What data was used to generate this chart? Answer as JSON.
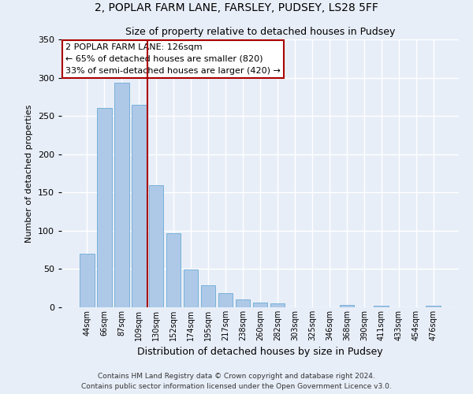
{
  "title": "2, POPLAR FARM LANE, FARSLEY, PUDSEY, LS28 5FF",
  "subtitle": "Size of property relative to detached houses in Pudsey",
  "xlabel": "Distribution of detached houses by size in Pudsey",
  "ylabel": "Number of detached properties",
  "bin_labels": [
    "44sqm",
    "66sqm",
    "87sqm",
    "109sqm",
    "130sqm",
    "152sqm",
    "174sqm",
    "195sqm",
    "217sqm",
    "238sqm",
    "260sqm",
    "282sqm",
    "303sqm",
    "325sqm",
    "346sqm",
    "368sqm",
    "390sqm",
    "411sqm",
    "433sqm",
    "454sqm",
    "476sqm"
  ],
  "bar_heights": [
    70,
    260,
    293,
    265,
    160,
    97,
    49,
    29,
    19,
    10,
    6,
    5,
    0,
    0,
    0,
    3,
    0,
    2,
    0,
    0,
    2
  ],
  "bar_color": "#aec9e8",
  "bar_edge_color": "#6aaad4",
  "vline_x": 3.5,
  "vline_color": "#aa0000",
  "annotation_title": "2 POPLAR FARM LANE: 126sqm",
  "annotation_line1": "← 65% of detached houses are smaller (820)",
  "annotation_line2": "33% of semi-detached houses are larger (420) →",
  "annotation_box_facecolor": "#ffffff",
  "annotation_box_edgecolor": "#aa0000",
  "ylim": [
    0,
    350
  ],
  "yticks": [
    0,
    50,
    100,
    150,
    200,
    250,
    300,
    350
  ],
  "footer1": "Contains HM Land Registry data © Crown copyright and database right 2024.",
  "footer2": "Contains public sector information licensed under the Open Government Licence v3.0.",
  "bg_color": "#e8eef8",
  "grid_color": "#ffffff",
  "title_fontsize": 10,
  "subtitle_fontsize": 9,
  "ylabel_fontsize": 8,
  "xlabel_fontsize": 9,
  "tick_fontsize": 7,
  "footer_fontsize": 6.5
}
